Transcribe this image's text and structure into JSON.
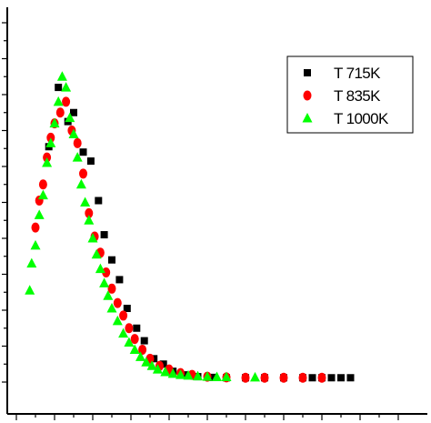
{
  "chart_data": {
    "type": "scatter",
    "title": "",
    "xlabel": "",
    "ylabel": "",
    "xlim": [
      0,
      20
    ],
    "ylim": [
      0,
      100
    ],
    "grid": false,
    "legend_position": "top-right",
    "series": [
      {
        "name": "T 715K",
        "marker": "square",
        "color": "#000000",
        "x": [
          1.7,
          2.2,
          2.7,
          3.0,
          3.5,
          3.9,
          4.3,
          4.6,
          5.0,
          5.4,
          5.8,
          6.3,
          6.7,
          7.2,
          7.7,
          8.2,
          8.8,
          9.5,
          10.3,
          11.0,
          12.0,
          13.0,
          14.0,
          15.0,
          15.5,
          16.0,
          16.5,
          17.0,
          17.5
        ],
        "y": [
          65.5,
          82.0,
          72.5,
          75.0,
          64.0,
          61.5,
          50.5,
          41.0,
          34.0,
          28.5,
          20.5,
          15.0,
          11.5,
          6.5,
          5.0,
          3.0,
          2.0,
          1.5,
          1.3,
          1.2,
          1.2,
          1.2,
          1.2,
          1.2,
          1.2,
          1.2,
          1.2,
          1.2,
          1.2
        ]
      },
      {
        "name": "T 835K",
        "marker": "circle",
        "color": "#ff0000",
        "x": [
          1.0,
          1.2,
          1.4,
          1.6,
          1.8,
          2.0,
          2.3,
          2.6,
          2.9,
          3.2,
          3.5,
          3.8,
          4.1,
          4.4,
          4.7,
          5.0,
          5.3,
          5.6,
          5.9,
          6.2,
          6.6,
          7.0,
          7.5,
          8.0,
          8.6,
          9.2,
          10.0,
          11.0,
          12.0,
          13.0,
          14.0,
          15.0,
          16.0
        ],
        "y": [
          43.0,
          50.5,
          55.0,
          62.5,
          68.0,
          72.0,
          75.0,
          78.0,
          70.0,
          66.5,
          58.0,
          47.0,
          40.5,
          36.0,
          30.5,
          26.0,
          22.0,
          18.5,
          15.0,
          12.0,
          9.0,
          6.5,
          4.5,
          3.5,
          2.5,
          2.0,
          1.5,
          1.3,
          1.2,
          1.2,
          1.2,
          1.2,
          1.2
        ]
      },
      {
        "name": "T 1000K",
        "marker": "triangle",
        "color": "#00ff00",
        "x": [
          0.7,
          0.8,
          1.0,
          1.2,
          1.4,
          1.6,
          1.8,
          2.0,
          2.2,
          2.4,
          2.6,
          2.8,
          3.0,
          3.2,
          3.4,
          3.6,
          3.8,
          4.0,
          4.2,
          4.4,
          4.6,
          4.8,
          5.0,
          5.3,
          5.6,
          5.9,
          6.2,
          6.5,
          6.8,
          7.1,
          7.4,
          7.8,
          8.2,
          8.6,
          9.0,
          9.5,
          10.0,
          10.5,
          11.0,
          12.5
        ],
        "y": [
          25.5,
          33.0,
          38.0,
          46.5,
          52.0,
          61.0,
          66.5,
          72.0,
          78.0,
          85.0,
          82.0,
          73.5,
          69.0,
          62.5,
          55.0,
          50.0,
          45.0,
          40.0,
          35.5,
          31.5,
          27.5,
          24.0,
          20.5,
          17.0,
          13.5,
          11.0,
          9.0,
          7.0,
          5.5,
          4.5,
          3.5,
          2.8,
          2.3,
          2.0,
          1.8,
          1.6,
          1.5,
          1.4,
          1.4,
          1.3
        ]
      }
    ]
  }
}
